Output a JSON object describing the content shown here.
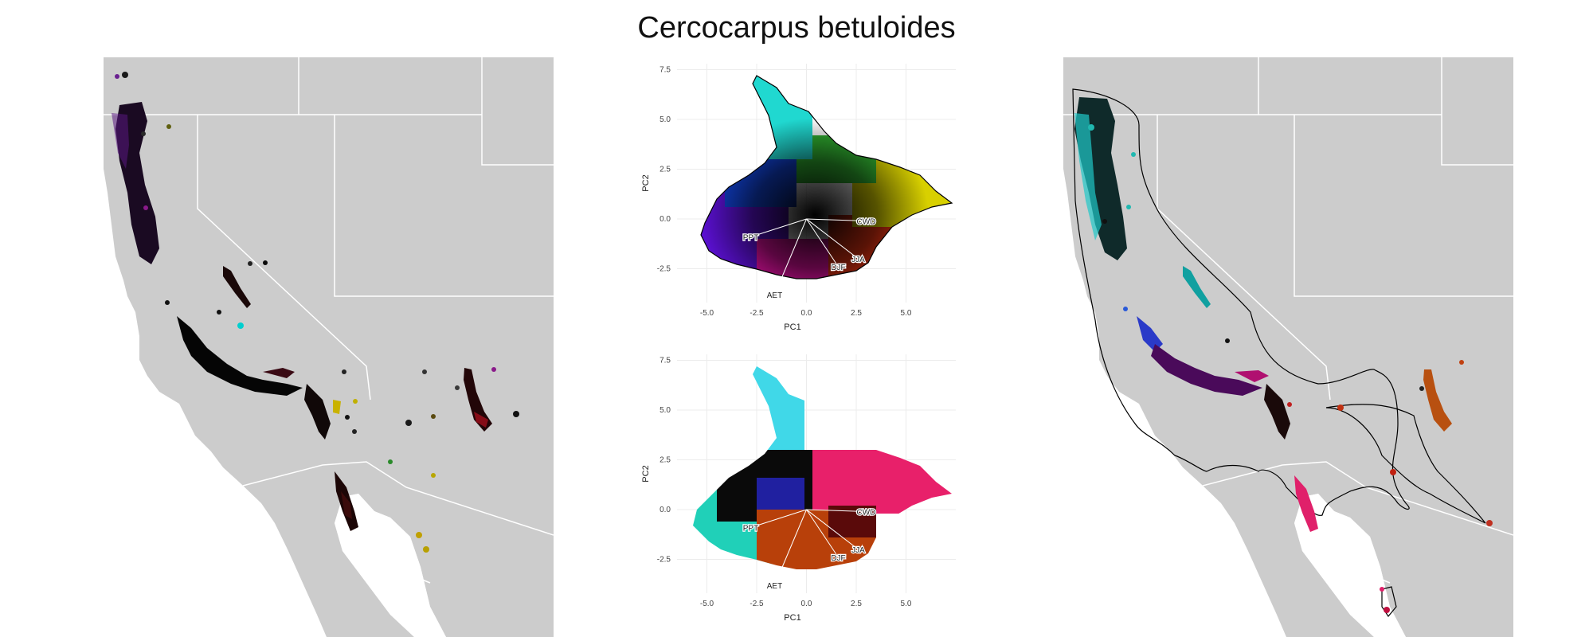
{
  "figure": {
    "title": "Cercocarpus betuloides"
  },
  "colors": {
    "land": "#cccccc",
    "border": "#ffffff",
    "ocean": "#ffffff",
    "hull_outline": "#000000",
    "grid": "#ececec"
  },
  "chart_data": [
    {
      "type": "scatter",
      "title": "",
      "xlabel": "PC1",
      "ylabel": "PC2",
      "xlim": [
        -6.5,
        7.5
      ],
      "ylim": [
        -4.2,
        7.8
      ],
      "xticks": [
        "-5.0",
        "-2.5",
        "0.0",
        "2.5",
        "5.0"
      ],
      "yticks": [
        "-2.5",
        "0.0",
        "2.5",
        "5.0",
        "7.5"
      ],
      "grid": true,
      "coloring": "continuous colour wheel over climate space",
      "loadings": [
        {
          "label": "PPT",
          "x": -2.8,
          "y": -0.9
        },
        {
          "label": "CWD",
          "x": 3.0,
          "y": -0.1
        },
        {
          "label": "JJA",
          "x": 2.6,
          "y": -2.0
        },
        {
          "label": "DJF",
          "x": 1.6,
          "y": -2.4
        },
        {
          "label": "AET",
          "x": -1.6,
          "y": -3.8
        }
      ]
    },
    {
      "type": "scatter",
      "title": "",
      "xlabel": "PC1",
      "ylabel": "PC2",
      "xlim": [
        -6.5,
        7.5
      ],
      "ylim": [
        -4.2,
        7.8
      ],
      "xticks": [
        "-5.0",
        "-2.5",
        "0.0",
        "2.5",
        "5.0"
      ],
      "yticks": [
        "-2.5",
        "0.0",
        "2.5",
        "5.0",
        "7.5"
      ],
      "grid": true,
      "coloring": "discrete colours by population cluster",
      "loadings": [
        {
          "label": "PPT",
          "x": -2.8,
          "y": -0.9
        },
        {
          "label": "CWD",
          "x": 3.0,
          "y": -0.1
        },
        {
          "label": "JJA",
          "x": 2.6,
          "y": -2.0
        },
        {
          "label": "DJF",
          "x": 1.6,
          "y": -2.4
        },
        {
          "label": "AET",
          "x": -1.6,
          "y": -3.8
        }
      ]
    }
  ]
}
